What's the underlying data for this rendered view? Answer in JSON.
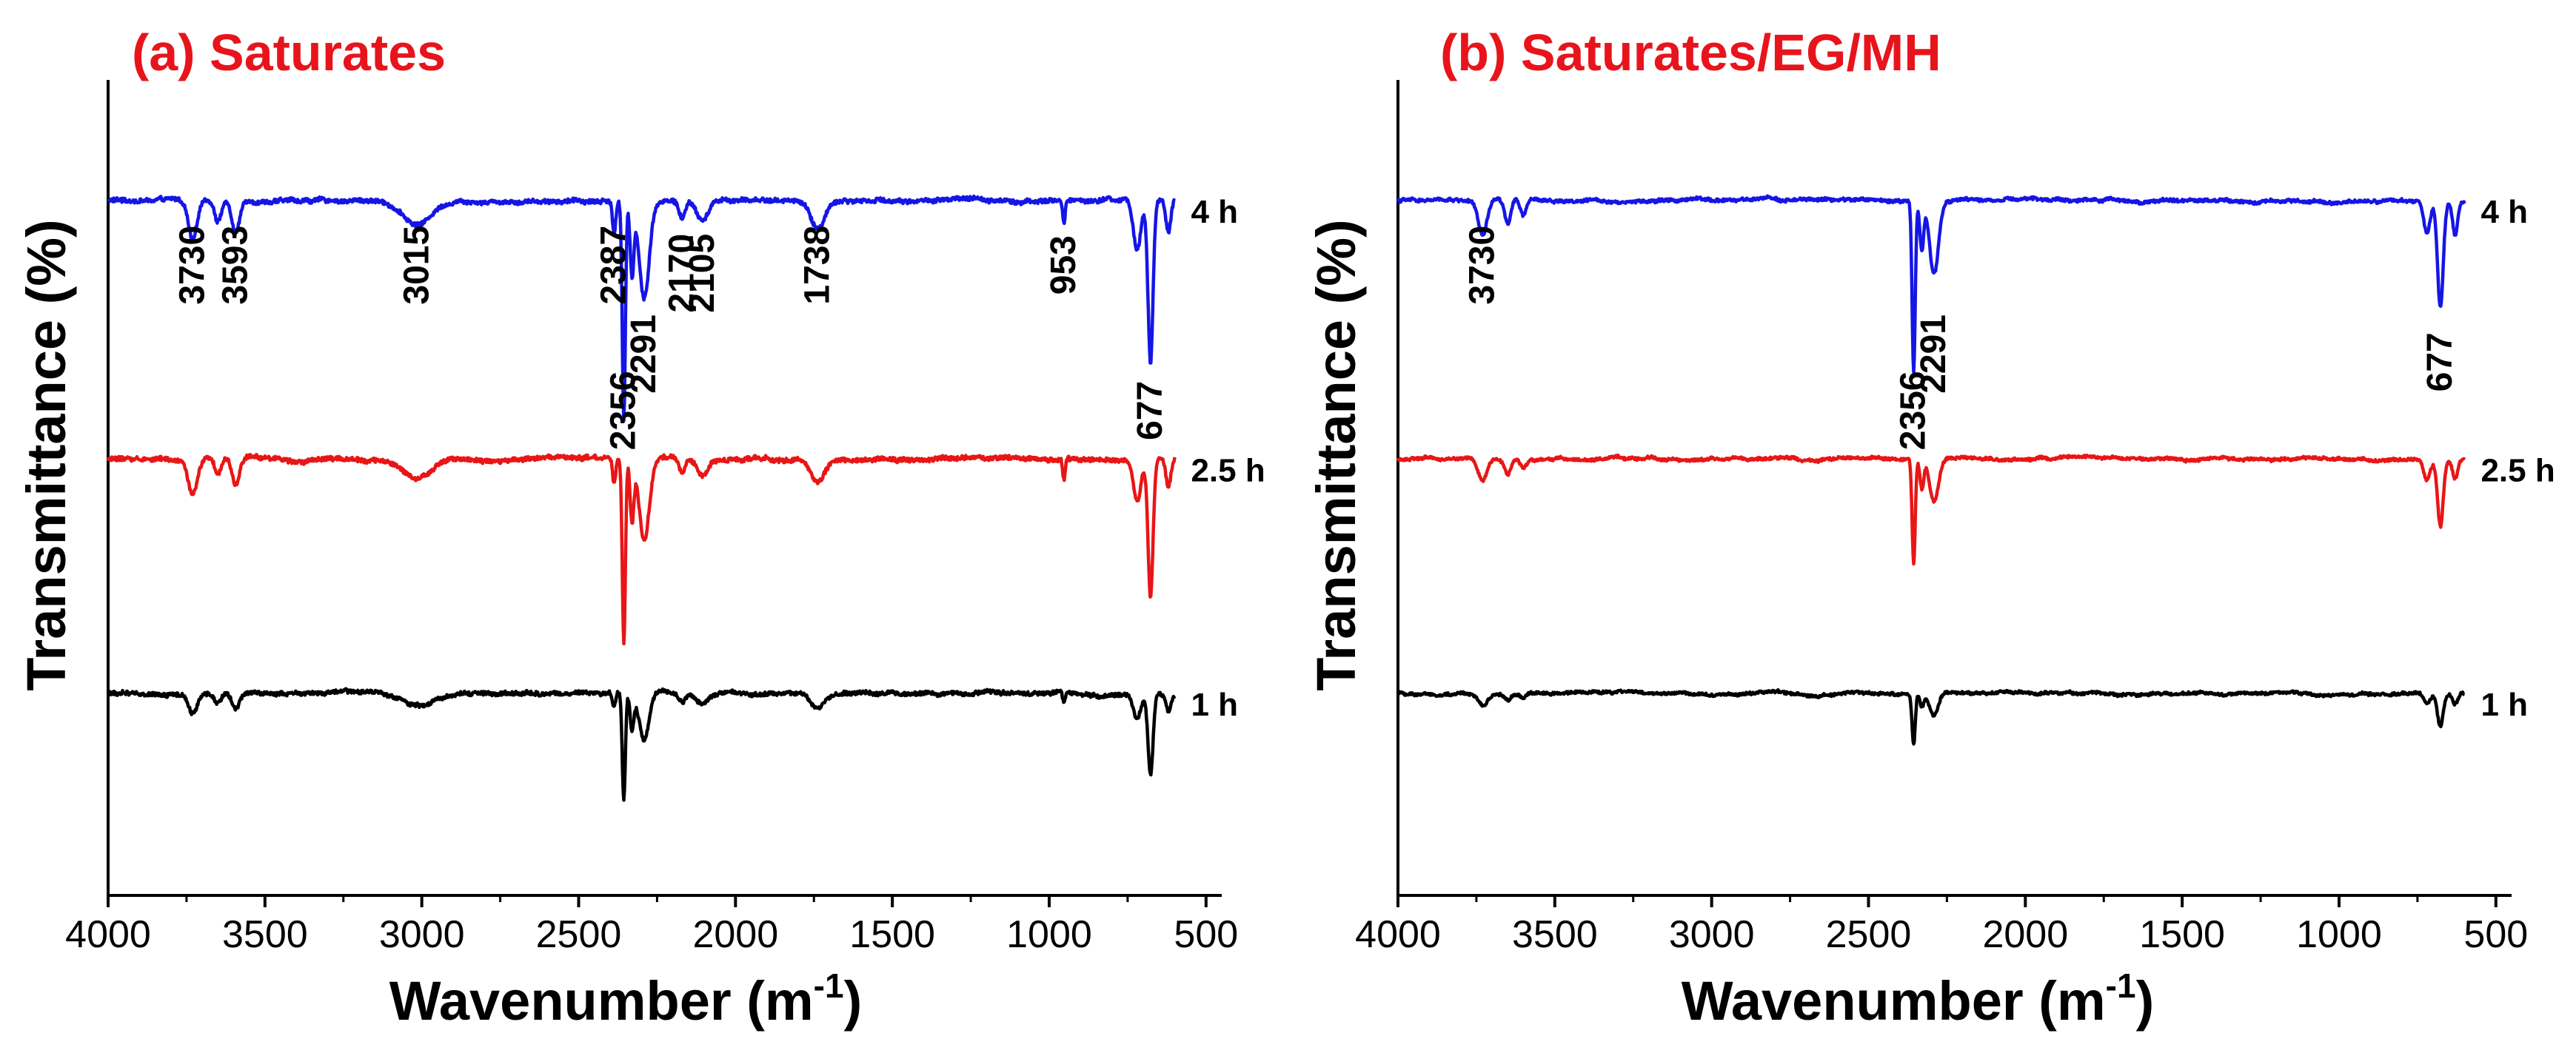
{
  "chart_data": [
    {
      "id": "a",
      "type": "line",
      "title": "(a) Saturates",
      "xlabel": "Wavenumber (m⁻¹)",
      "ylabel": "Transmittance (%)",
      "xlim": [
        4000,
        450
      ],
      "x_reversed": true,
      "xticks": [
        4000,
        3500,
        3000,
        2500,
        2000,
        1500,
        1000,
        500
      ],
      "xtick_labels": [
        "4000",
        "3500",
        "3000",
        "2500",
        "2000",
        "1500",
        "1000",
        "500"
      ],
      "y_ticks_shown": false,
      "series_stacked_with_offset": true,
      "series": [
        {
          "name": "4 h",
          "color": "#1515e6",
          "baseline": 86,
          "scale": 1.0,
          "noise": 0.5
        },
        {
          "name": "2.5 h",
          "color": "#e81616",
          "baseline": 54,
          "scale": 0.85,
          "noise": 0.5
        },
        {
          "name": "1 h",
          "color": "#000000",
          "baseline": 25,
          "scale": 0.5,
          "noise": 0.45
        }
      ],
      "bands": [
        {
          "x": 3730,
          "depth": 5,
          "width": 14
        },
        {
          "x": 3650,
          "depth": 2.5,
          "width": 10
        },
        {
          "x": 3593,
          "depth": 4,
          "width": 12
        },
        {
          "x": 3015,
          "depth": 3,
          "width": 45
        },
        {
          "x": 2387,
          "depth": 4,
          "width": 5
        },
        {
          "x": 2356,
          "depth": 27,
          "width": 5
        },
        {
          "x": 2330,
          "depth": 9,
          "width": 6
        },
        {
          "x": 2291,
          "depth": 12,
          "width": 16
        },
        {
          "x": 2170,
          "depth": 2.2,
          "width": 10
        },
        {
          "x": 2105,
          "depth": 2.5,
          "width": 18
        },
        {
          "x": 1738,
          "depth": 3.5,
          "width": 22
        },
        {
          "x": 953,
          "depth": 3,
          "width": 4
        },
        {
          "x": 720,
          "depth": 6,
          "width": 12
        },
        {
          "x": 677,
          "depth": 20,
          "width": 8
        },
        {
          "x": 620,
          "depth": 4,
          "width": 8
        }
      ],
      "peak_labels": [
        {
          "x": 3730,
          "text": "3730",
          "y": 78
        },
        {
          "x": 3593,
          "text": "3593",
          "y": 78
        },
        {
          "x": 3015,
          "text": "3015",
          "y": 78
        },
        {
          "x": 2387,
          "text": "2387",
          "y": 78
        },
        {
          "x": 2356,
          "text": "2356",
          "y": 60
        },
        {
          "x": 2291,
          "text": "2291",
          "y": 67
        },
        {
          "x": 2170,
          "text": "2170",
          "y": 77
        },
        {
          "x": 2105,
          "text": "2105",
          "y": 77
        },
        {
          "x": 1738,
          "text": "1738",
          "y": 78
        },
        {
          "x": 953,
          "text": "953",
          "y": 78
        },
        {
          "x": 677,
          "text": "677",
          "y": 60
        }
      ]
    },
    {
      "id": "b",
      "type": "line",
      "title": "(b) Saturates/EG/MH",
      "xlabel": "Wavenumber (m⁻¹)",
      "ylabel": "Transmittance (%)",
      "xlim": [
        4000,
        450
      ],
      "x_reversed": true,
      "xticks": [
        4000,
        3500,
        3000,
        2500,
        2000,
        1500,
        1000,
        500
      ],
      "xtick_labels": [
        "4000",
        "3500",
        "3000",
        "2500",
        "2000",
        "1500",
        "1000",
        "500"
      ],
      "y_ticks_shown": false,
      "series_stacked_with_offset": true,
      "series": [
        {
          "name": "4 h",
          "color": "#1515e6",
          "baseline": 86,
          "scale": 1.0,
          "noise": 0.35
        },
        {
          "name": "2.5 h",
          "color": "#e81616",
          "baseline": 54,
          "scale": 0.62,
          "noise": 0.3
        },
        {
          "name": "1 h",
          "color": "#000000",
          "baseline": 25,
          "scale": 0.3,
          "noise": 0.3
        }
      ],
      "bands": [
        {
          "x": 3730,
          "depth": 4.5,
          "width": 14
        },
        {
          "x": 3650,
          "depth": 3,
          "width": 10
        },
        {
          "x": 3600,
          "depth": 2,
          "width": 10
        },
        {
          "x": 2356,
          "depth": 21,
          "width": 5
        },
        {
          "x": 2330,
          "depth": 6,
          "width": 6
        },
        {
          "x": 2291,
          "depth": 9,
          "width": 14
        },
        {
          "x": 720,
          "depth": 4,
          "width": 10
        },
        {
          "x": 677,
          "depth": 13,
          "width": 9
        },
        {
          "x": 630,
          "depth": 4,
          "width": 8
        }
      ],
      "peak_labels": [
        {
          "x": 3730,
          "text": "3730",
          "y": 78
        },
        {
          "x": 2356,
          "text": "2356",
          "y": 60
        },
        {
          "x": 2291,
          "text": "2291",
          "y": 67
        },
        {
          "x": 677,
          "text": "677",
          "y": 66
        }
      ]
    }
  ]
}
